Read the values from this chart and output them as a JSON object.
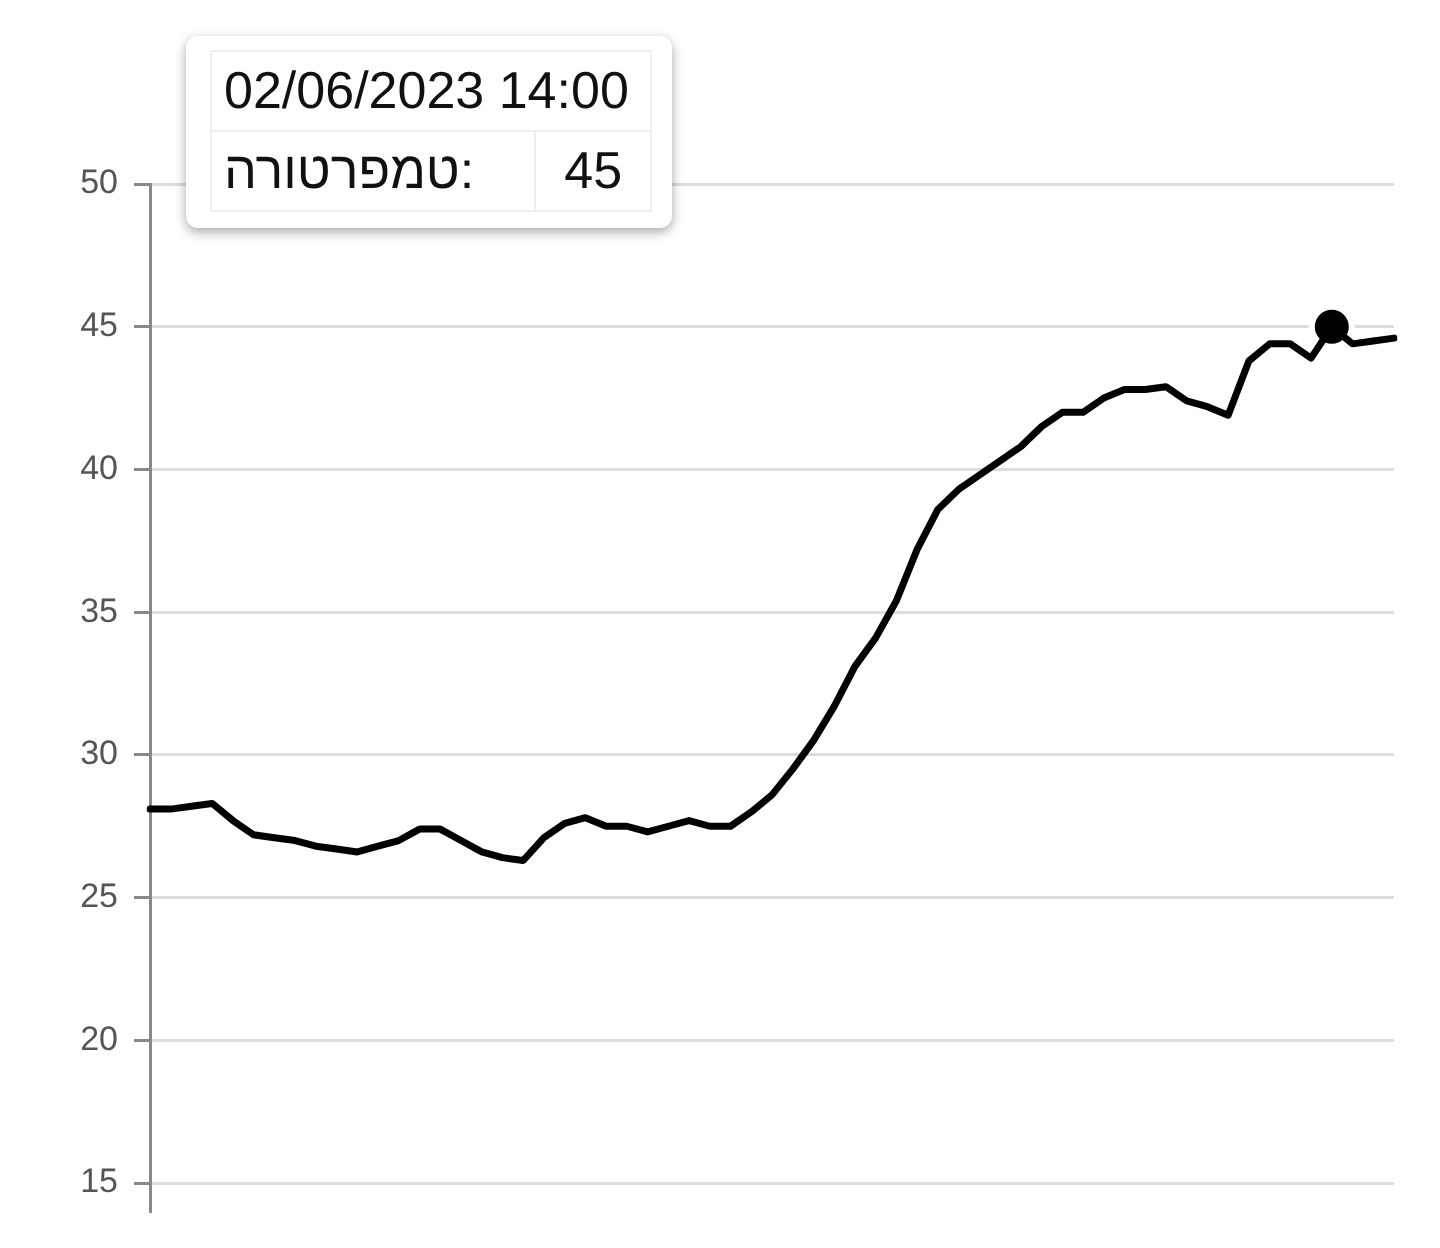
{
  "chart_data": {
    "type": "line",
    "categories": [
      null,
      null,
      null,
      null,
      null,
      null,
      null,
      null,
      null,
      null,
      null,
      null,
      null,
      null,
      null,
      null,
      null,
      null,
      null,
      null,
      null,
      null,
      null,
      null,
      null,
      null,
      null,
      null,
      null,
      null,
      null,
      null,
      null,
      null,
      null,
      null,
      null,
      null,
      null,
      null,
      null,
      null,
      null,
      null,
      null,
      null,
      null,
      null,
      null,
      null,
      null,
      null,
      null,
      null,
      null,
      null,
      null,
      null,
      null,
      null,
      null
    ],
    "series": [
      {
        "type": "line",
        "color": "#000000",
        "marker": "none",
        "values": [
          28.1,
          28.1,
          28.2,
          28.3,
          27.7,
          27.2,
          27.1,
          27.0,
          26.8,
          26.7,
          26.6,
          26.8,
          27.0,
          27.4,
          27.4,
          27.0,
          26.6,
          26.4,
          26.3,
          27.1,
          27.6,
          27.8,
          27.5,
          27.5,
          27.3,
          27.5,
          27.7,
          27.5,
          27.5,
          28.0,
          28.6,
          29.5,
          30.5,
          31.7,
          33.1,
          34.1,
          35.4,
          37.2,
          38.6,
          39.3,
          39.8,
          40.3,
          40.8,
          41.5,
          42.0,
          42.0,
          42.5,
          42.8,
          42.8,
          42.9,
          42.4,
          42.2,
          41.9,
          43.8,
          44.4,
          44.4,
          43.9,
          45,
          44.4,
          44.5,
          44.6
        ]
      },
      {
        "type": "scatter",
        "color": "#000000",
        "marker": "circle",
        "values": [
          null,
          null,
          null,
          null,
          null,
          null,
          null,
          null,
          null,
          null,
          null,
          null,
          null,
          null,
          null,
          null,
          null,
          null,
          null,
          null,
          null,
          null,
          null,
          null,
          null,
          null,
          null,
          null,
          null,
          null,
          null,
          null,
          null,
          null,
          null,
          null,
          null,
          null,
          null,
          null,
          null,
          null,
          null,
          null,
          null,
          null,
          null,
          null,
          null,
          null,
          null,
          null,
          null,
          null,
          null,
          null,
          null,
          45,
          null,
          null,
          null
        ]
      }
    ],
    "ylim": [
      14,
      50
    ],
    "yticks": [
      15,
      20,
      25,
      30,
      35,
      40,
      45,
      50
    ],
    "grid": "y",
    "tick_labels": "y",
    "legend": false,
    "annotations": [
      "02/06/2023 14:00",
      "טמפרטורה:",
      "45"
    ]
  }
}
